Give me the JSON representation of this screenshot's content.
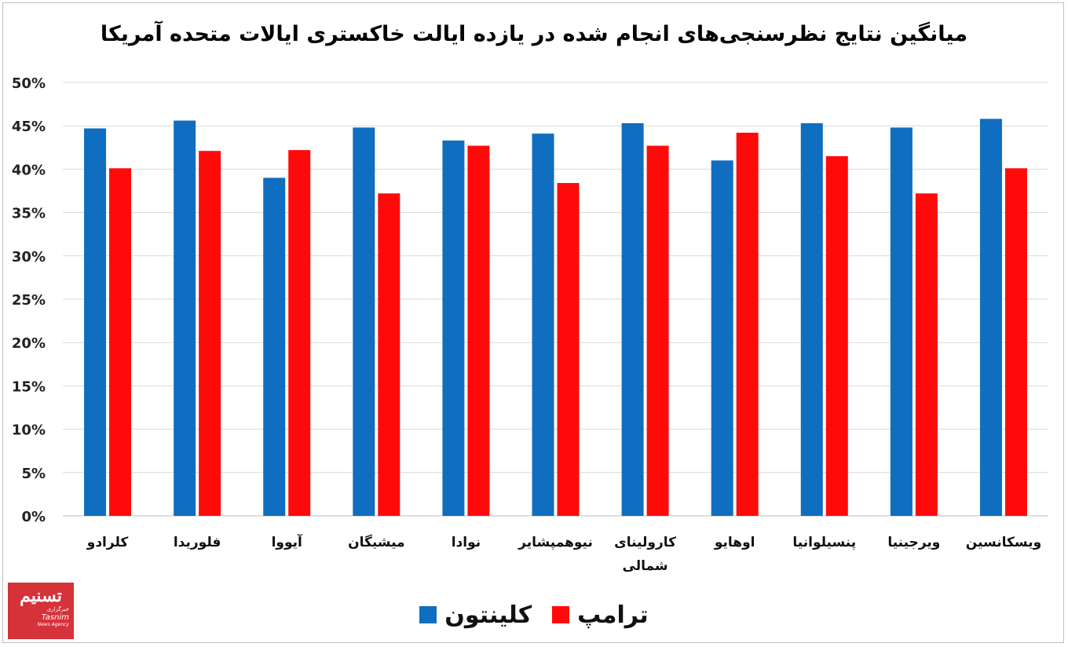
{
  "chart_data": {
    "type": "bar",
    "title": "میانگین نتایج نظرسنجی‌های انجام شده در یازده ایالت خاکستری ایالات متحده آمریکا",
    "xlabel": "",
    "ylabel": "",
    "ylim": [
      0,
      50
    ],
    "y_ticks": [
      "0%",
      "5%",
      "10%",
      "15%",
      "20%",
      "25%",
      "30%",
      "35%",
      "40%",
      "45%",
      "50%"
    ],
    "grid": true,
    "legend_position": "bottom",
    "categories": [
      "کلرادو",
      "فلوریدا",
      "آیووا",
      "میشیگان",
      "نوادا",
      "نیوهمپشایر",
      "کارولینای شمالی",
      "اوهایو",
      "پنسیلوانیا",
      "ویرجینیا",
      "ویسکانسین"
    ],
    "series": [
      {
        "name": "کلینتون",
        "color": "#0f6ebf",
        "values": [
          44.7,
          45.6,
          39.0,
          44.8,
          43.3,
          44.1,
          45.3,
          41.0,
          45.3,
          44.8,
          45.8
        ]
      },
      {
        "name": "ترامپ",
        "color": "#ff0a0a",
        "values": [
          40.1,
          42.1,
          42.2,
          37.2,
          42.7,
          38.4,
          42.7,
          44.2,
          41.5,
          37.2,
          40.1
        ]
      }
    ]
  },
  "logo": {
    "line1": "تسنیم",
    "line2": "خبرگزاری",
    "line3": "Tasnim",
    "line4": "News Agency"
  }
}
